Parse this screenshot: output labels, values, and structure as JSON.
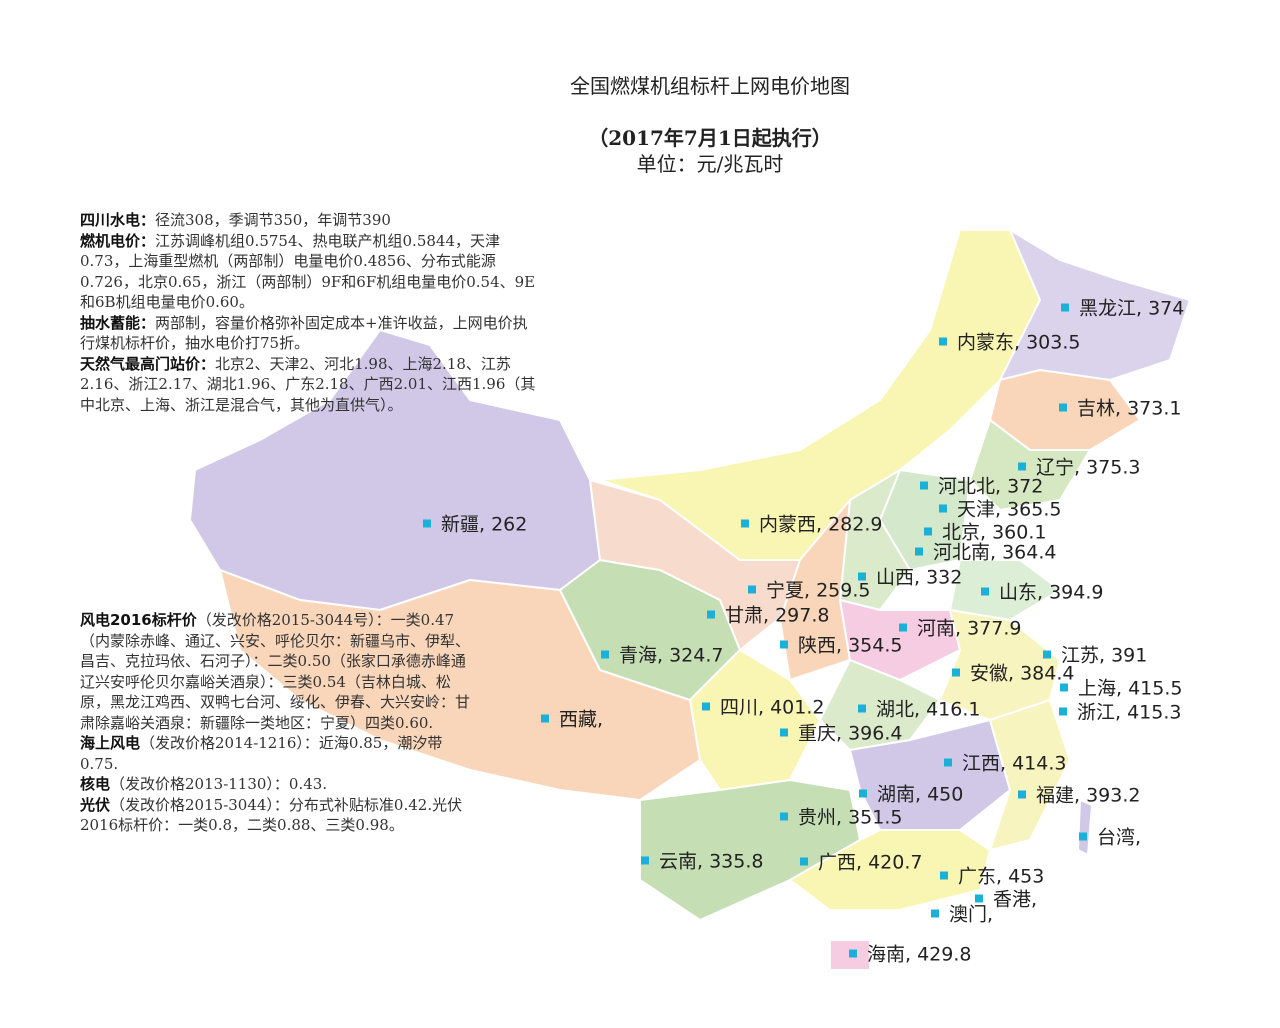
{
  "title": "全国燃煤机组标杆上网电价地图",
  "subtitle": "（2017年7月1日起执行）",
  "unit": "单位：元/兆瓦时",
  "colors": {
    "marker": "#1ab0d8"
  },
  "notes_top": [
    {
      "head": "四川水电：",
      "text": "径流308，季调节350，年调节390"
    },
    {
      "head": "燃机电价：",
      "text": "江苏调峰机组0.5754、热电联产机组0.5844，天津0.73，上海重型燃机（两部制）电量电价0.4856、分布式能源0.726，北京0.65，浙江（两部制）9F和6F机组电量电价0.54、9E和6B机组电量电价0.60。"
    },
    {
      "head": "抽水蓄能：",
      "text": "两部制，容量价格弥补固定成本+准许收益，上网电价执行煤机标杆价，抽水电价打75折。"
    },
    {
      "head": "天然气最高门站价：",
      "text": "北京2、天津2、河北1.98、上海2.18、江苏2.16、浙江2.17、湖北1.96、广东2.18、广西2.01、江西1.96（其中北京、上海、浙江是混合气，其他为直供气）。"
    }
  ],
  "notes_bottom": [
    {
      "head": "风电2016标杆价",
      "text": "（发改价格2015-3044号）：一类0.47（内蒙除赤峰、通辽、兴安、呼伦贝尔：新疆乌市、伊犁、昌吉、克拉玛依、石河子）：二类0.50（张家口承德赤峰通辽兴安呼伦贝尔嘉峪关酒泉）：三类0.54（吉林白城、松原，黑龙江鸡西、双鸭七台河、绥化、伊春、大兴安岭：甘肃除嘉峪关酒泉：新疆除一类地区：宁夏）四类0.60."
    },
    {
      "head": "海上风电",
      "text": "（发改价格2014-1216）：近海0.85，潮汐带0.75."
    },
    {
      "head": "核电",
      "text": "（发改价格2013-1130）：0.43."
    },
    {
      "head": "光伏",
      "text": "（发改价格2015-3044）：分布式补贴标准0.42.光伏2016标杆价：一类0.8，二类0.88、三类0.98。"
    }
  ],
  "provinces": [
    {
      "name": "黑龙江",
      "price": "374"
    },
    {
      "name": "内蒙东",
      "price": "303.5"
    },
    {
      "name": "吉林",
      "price": "373.1"
    },
    {
      "name": "辽宁",
      "price": "375.3"
    },
    {
      "name": "河北北",
      "price": "372"
    },
    {
      "name": "天津",
      "price": "365.5"
    },
    {
      "name": "新疆",
      "price": "262"
    },
    {
      "name": "内蒙西",
      "price": "282.9"
    },
    {
      "name": "北京",
      "price": "360.1"
    },
    {
      "name": "河北南",
      "price": "364.4"
    },
    {
      "name": "山西",
      "price": "332"
    },
    {
      "name": "宁夏",
      "price": "259.5"
    },
    {
      "name": "山东",
      "price": "394.9"
    },
    {
      "name": "甘肃",
      "price": "297.8"
    },
    {
      "name": "河南",
      "price": "377.9"
    },
    {
      "name": "青海",
      "price": "324.7"
    },
    {
      "name": "陕西",
      "price": "354.5"
    },
    {
      "name": "江苏",
      "price": "391"
    },
    {
      "name": "安徽",
      "price": "384.4"
    },
    {
      "name": "上海",
      "price": "415.5"
    },
    {
      "name": "四川",
      "price": "401.2"
    },
    {
      "name": "湖北",
      "price": "416.1"
    },
    {
      "name": "浙江",
      "price": "415.3"
    },
    {
      "name": "西藏",
      "price": ""
    },
    {
      "name": "重庆",
      "price": "396.4"
    },
    {
      "name": "江西",
      "price": "414.3"
    },
    {
      "name": "湖南",
      "price": "450"
    },
    {
      "name": "福建",
      "price": "393.2"
    },
    {
      "name": "贵州",
      "price": "351.5"
    },
    {
      "name": "台湾",
      "price": ""
    },
    {
      "name": "云南",
      "price": "335.8"
    },
    {
      "name": "广西",
      "price": "420.7"
    },
    {
      "name": "广东",
      "price": "453"
    },
    {
      "name": "香港",
      "price": ""
    },
    {
      "name": "澳门",
      "price": ""
    },
    {
      "name": "海南",
      "price": "429.8"
    }
  ]
}
